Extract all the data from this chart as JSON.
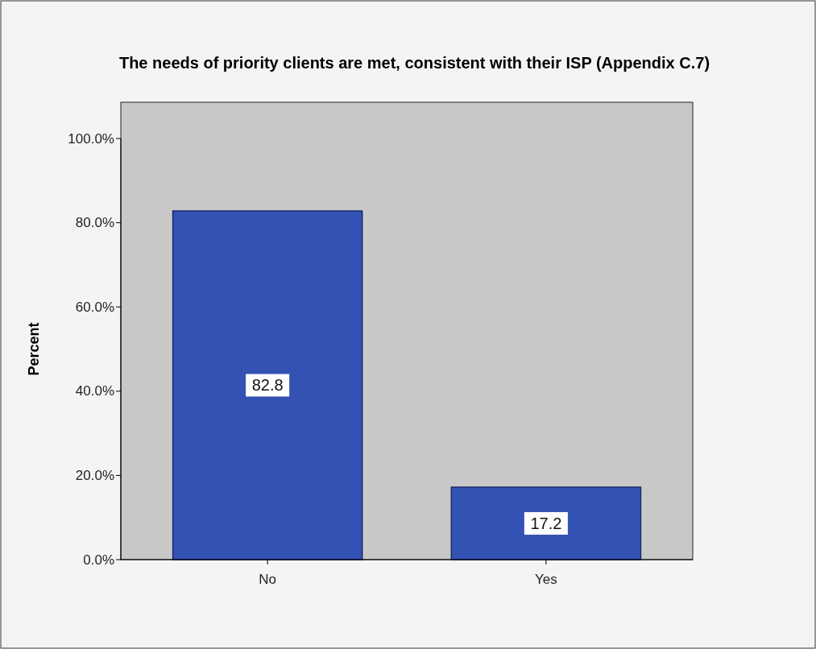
{
  "chart_data": {
    "type": "bar",
    "title": "The needs of priority clients are met, consistent with their ISP (Appendix C.7)",
    "ylabel": "Percent",
    "categories": [
      "No",
      "Yes"
    ],
    "values": [
      82.8,
      17.2
    ],
    "color": "#3452b4",
    "ylim": [
      0,
      100
    ],
    "yticks": [
      {
        "value": 0,
        "label": "0.0%"
      },
      {
        "value": 20,
        "label": "20.0%"
      },
      {
        "value": 40,
        "label": "40.0%"
      },
      {
        "value": 60,
        "label": "60.0%"
      },
      {
        "value": 80,
        "label": "80.0%"
      },
      {
        "value": 100,
        "label": "100.0%"
      }
    ],
    "data_labels": true
  }
}
